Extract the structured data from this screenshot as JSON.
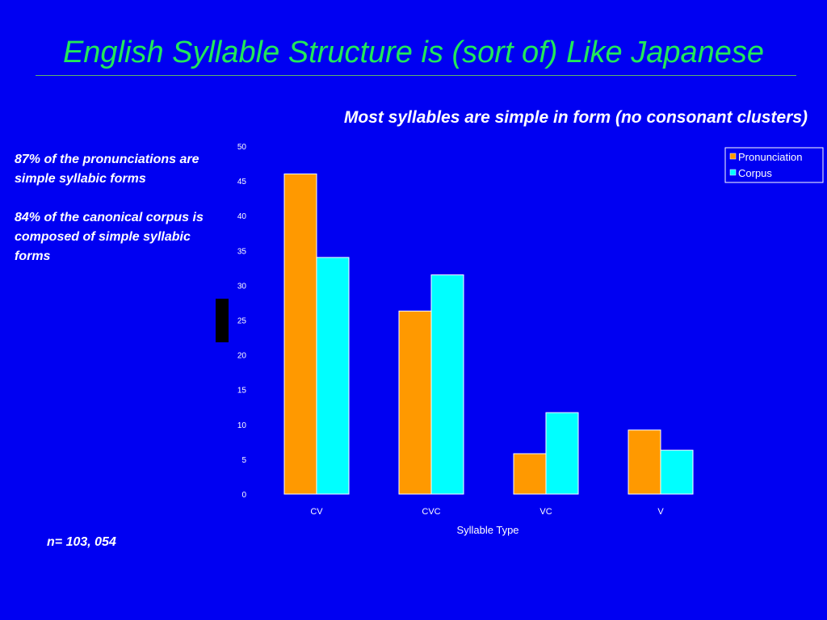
{
  "slide": {
    "title": "English Syllable Structure is (sort of) Like Japanese",
    "subtitle": "Most syllables are simple in form (no consonant clusters)",
    "notes": [
      "87% of the pronunciations are simple syllabic forms",
      "84% of the canonical corpus is composed of simple syllabic forms"
    ],
    "n_label": "n= 103, 054"
  },
  "colors": {
    "background": "#0000f2",
    "title": "#22e85a",
    "pronunciation": "#ff9900",
    "corpus": "#00ffff"
  },
  "chart_data": {
    "type": "bar",
    "categories": [
      "CV",
      "CVC",
      "VC",
      "V"
    ],
    "series": [
      {
        "name": "Pronunciation",
        "values": [
          46,
          26.3,
          5.8,
          9.2
        ]
      },
      {
        "name": "Corpus",
        "values": [
          34,
          31.5,
          11.7,
          6.3
        ]
      }
    ],
    "xlabel": "Syllable Type",
    "ylim": [
      0,
      50
    ],
    "yticks": [
      0,
      5,
      10,
      15,
      20,
      25,
      30,
      35,
      40,
      45,
      50
    ],
    "grid": false,
    "legend_position": "top-right"
  }
}
